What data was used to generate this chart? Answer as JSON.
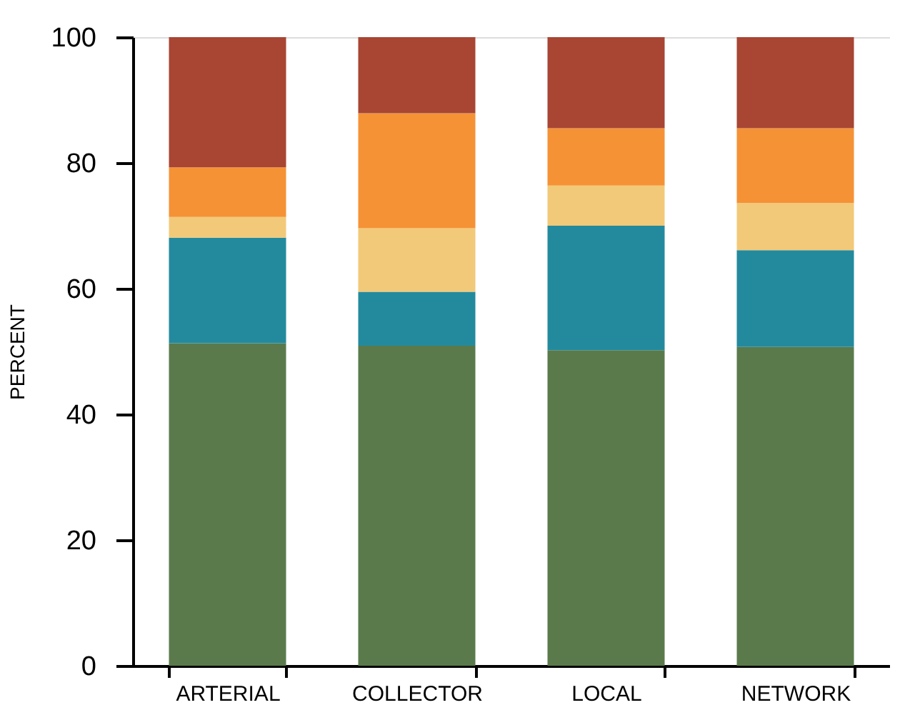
{
  "chart_data": {
    "type": "bar",
    "stacked": true,
    "ylabel": "PERCENT",
    "categories": [
      "ARTERIAL",
      "COLLECTOR",
      "LOCAL",
      "NETWORK"
    ],
    "series": [
      {
        "color": "#5a7a4b",
        "values": [
          51.3,
          50.9,
          50.2,
          50.7
        ]
      },
      {
        "color": "#238a9e",
        "values": [
          16.8,
          8.6,
          19.8,
          15.4
        ]
      },
      {
        "color": "#f2c978",
        "values": [
          3.3,
          10.1,
          6.4,
          7.5
        ]
      },
      {
        "color": "#f59235",
        "values": [
          7.9,
          18.3,
          9.1,
          11.9
        ]
      },
      {
        "color": "#a84533",
        "values": [
          20.7,
          12.1,
          14.5,
          14.5
        ]
      }
    ],
    "ylim": [
      0,
      100
    ],
    "yticks": [
      0,
      20,
      40,
      60,
      80,
      100
    ],
    "grid": false,
    "legend": false
  }
}
